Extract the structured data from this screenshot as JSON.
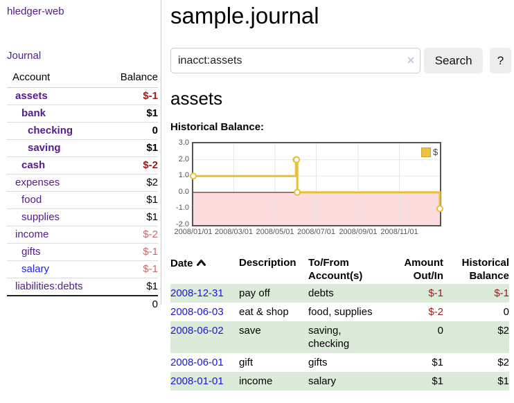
{
  "sidebar": {
    "app_title": "hledger-web",
    "nav": {
      "journal": "Journal"
    },
    "accounts_table": {
      "headers": {
        "account": "Account",
        "balance": "Balance"
      },
      "rows": [
        {
          "name": "assets",
          "depth": 0,
          "emph": true,
          "balance": "$-1",
          "neg": true,
          "link_style": "purple"
        },
        {
          "name": "bank",
          "depth": 1,
          "emph": true,
          "balance": "$1",
          "neg": false,
          "link_style": "purple"
        },
        {
          "name": "checking",
          "depth": 2,
          "emph": true,
          "balance": "0",
          "neg": false,
          "link_style": "purple"
        },
        {
          "name": "saving",
          "depth": 2,
          "emph": true,
          "balance": "$1",
          "neg": false,
          "link_style": "purple"
        },
        {
          "name": "cash",
          "depth": 1,
          "emph": true,
          "balance": "$-2",
          "neg": true,
          "link_style": "purple"
        },
        {
          "name": "expenses",
          "depth": 0,
          "emph": false,
          "balance": "$2",
          "neg": false,
          "link_style": "purple"
        },
        {
          "name": "food",
          "depth": 1,
          "emph": false,
          "balance": "$1",
          "neg": false,
          "link_style": "purple"
        },
        {
          "name": "supplies",
          "depth": 1,
          "emph": false,
          "balance": "$1",
          "neg": false,
          "link_style": "purple"
        },
        {
          "name": "income",
          "depth": 0,
          "emph": false,
          "balance": "$-2",
          "neg": true,
          "link_style": "purple"
        },
        {
          "name": "gifts",
          "depth": 1,
          "emph": false,
          "balance": "$-1",
          "neg": true,
          "link_style": "purple"
        },
        {
          "name": "salary",
          "depth": 1,
          "emph": false,
          "balance": "$-1",
          "neg": true,
          "link_style": "blue"
        },
        {
          "name": "liabilities:debts",
          "depth": 0,
          "emph": false,
          "balance": "$1",
          "neg": false,
          "link_style": "purple"
        }
      ],
      "total": "0"
    }
  },
  "main": {
    "title": "sample.journal",
    "search": {
      "value": "inacct:assets",
      "clear_icon": "×",
      "button_label": "Search",
      "help_label": "?"
    },
    "account_heading": "assets",
    "chart_label": "Historical Balance:"
  },
  "chart_data": {
    "type": "line",
    "step": true,
    "title": "Historical Balance",
    "series": [
      {
        "name": "$",
        "color": "#e7bf3e",
        "points": [
          {
            "x": "2008-01-01",
            "y": 1
          },
          {
            "x": "2008-06-01",
            "y": 2
          },
          {
            "x": "2008-06-02",
            "y": 2
          },
          {
            "x": "2008-06-03",
            "y": 0
          },
          {
            "x": "2008-12-31",
            "y": -1
          }
        ]
      }
    ],
    "xlim": [
      "2008-01-01",
      "2008-12-31"
    ],
    "ylim": [
      -2,
      3
    ],
    "x_ticks": [
      {
        "date": "2008-01-01",
        "label": "2008/01/01"
      },
      {
        "date": "2008-03-01",
        "label": "2008/03/01"
      },
      {
        "date": "2008-05-01",
        "label": "2008/05/01"
      },
      {
        "date": "2008-07-01",
        "label": "2008/07/01"
      },
      {
        "date": "2008-09-01",
        "label": "2008/09/01"
      },
      {
        "date": "2008-11-01",
        "label": "2008/11/01"
      }
    ],
    "y_ticks": [
      {
        "v": 3,
        "label": "3.0"
      },
      {
        "v": 2,
        "label": "2.0"
      },
      {
        "v": 1,
        "label": "1.0"
      },
      {
        "v": 0,
        "label": "0.0"
      },
      {
        "v": -1,
        "label": "-1.0"
      },
      {
        "v": -2,
        "label": "-2.0"
      }
    ],
    "grid": true,
    "legend": {
      "label": "$",
      "position": "top-right"
    },
    "colors": {
      "line": "#e7bf3e",
      "marker_fill": "#ffffff",
      "grid": "#e6e6e6",
      "border": "#545454",
      "negative_region": "#fcdcdc",
      "zero_line": "#990000"
    }
  },
  "register": {
    "headers": {
      "date": "Date",
      "description": "Description",
      "tofrom": "To/From Account(s)",
      "amount": "Amount Out/In",
      "balance": "Historical Balance"
    },
    "rows": [
      {
        "date": "2008-12-31",
        "description": "pay off",
        "accounts": "debts",
        "amount": "$-1",
        "amount_neg": true,
        "balance": "$-1",
        "balance_neg": true
      },
      {
        "date": "2008-06-03",
        "description": "eat & shop",
        "accounts": "food, supplies",
        "amount": "$-2",
        "amount_neg": true,
        "balance": "0",
        "balance_neg": false
      },
      {
        "date": "2008-06-02",
        "description": "save",
        "accounts": "saving, checking",
        "amount": "0",
        "amount_neg": false,
        "balance": "$2",
        "balance_neg": false
      },
      {
        "date": "2008-06-01",
        "description": "gift",
        "accounts": "gifts",
        "amount": "$1",
        "amount_neg": false,
        "balance": "$2",
        "balance_neg": false
      },
      {
        "date": "2008-01-01",
        "description": "income",
        "accounts": "salary",
        "amount": "$1",
        "amount_neg": false,
        "balance": "$1",
        "balance_neg": false
      }
    ]
  },
  "colors": {
    "link_purple": "#551a8b",
    "link_blue": "#1717d6",
    "negative_strong": "#9e1a1a",
    "negative_soft": "#c46a6a",
    "row_stripe_green": "#dcead9",
    "button_bg": "#ededed",
    "divider": "#cccccc"
  }
}
